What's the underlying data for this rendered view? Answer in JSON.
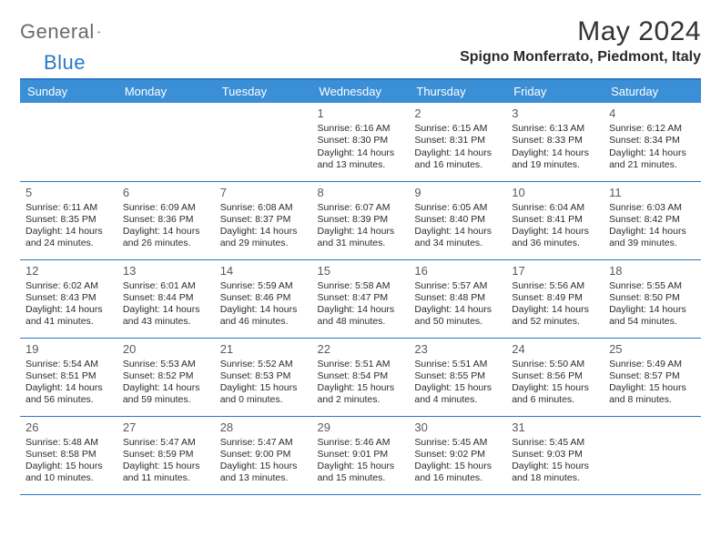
{
  "logo": {
    "word1": "General",
    "word2": "Blue"
  },
  "title": "May 2024",
  "location": "Spigno Monferrato, Piedmont, Italy",
  "title_fontsize": 30,
  "location_fontsize": 16,
  "dow_fontsize": 13,
  "cell_fontsize": 10.5,
  "colors": {
    "header_bg": "#3b8fd6",
    "header_text": "#ffffff",
    "accent": "#2a78c5",
    "logo_gray": "#6a6a6a",
    "text": "#2b2b2b",
    "daynum": "#5a5a5a",
    "background": "#ffffff"
  },
  "days_of_week": [
    "Sunday",
    "Monday",
    "Tuesday",
    "Wednesday",
    "Thursday",
    "Friday",
    "Saturday"
  ],
  "weeks": [
    [
      null,
      null,
      null,
      {
        "n": "1",
        "sr": "Sunrise: 6:16 AM",
        "ss": "Sunset: 8:30 PM",
        "d1": "Daylight: 14 hours",
        "d2": "and 13 minutes."
      },
      {
        "n": "2",
        "sr": "Sunrise: 6:15 AM",
        "ss": "Sunset: 8:31 PM",
        "d1": "Daylight: 14 hours",
        "d2": "and 16 minutes."
      },
      {
        "n": "3",
        "sr": "Sunrise: 6:13 AM",
        "ss": "Sunset: 8:33 PM",
        "d1": "Daylight: 14 hours",
        "d2": "and 19 minutes."
      },
      {
        "n": "4",
        "sr": "Sunrise: 6:12 AM",
        "ss": "Sunset: 8:34 PM",
        "d1": "Daylight: 14 hours",
        "d2": "and 21 minutes."
      }
    ],
    [
      {
        "n": "5",
        "sr": "Sunrise: 6:11 AM",
        "ss": "Sunset: 8:35 PM",
        "d1": "Daylight: 14 hours",
        "d2": "and 24 minutes."
      },
      {
        "n": "6",
        "sr": "Sunrise: 6:09 AM",
        "ss": "Sunset: 8:36 PM",
        "d1": "Daylight: 14 hours",
        "d2": "and 26 minutes."
      },
      {
        "n": "7",
        "sr": "Sunrise: 6:08 AM",
        "ss": "Sunset: 8:37 PM",
        "d1": "Daylight: 14 hours",
        "d2": "and 29 minutes."
      },
      {
        "n": "8",
        "sr": "Sunrise: 6:07 AM",
        "ss": "Sunset: 8:39 PM",
        "d1": "Daylight: 14 hours",
        "d2": "and 31 minutes."
      },
      {
        "n": "9",
        "sr": "Sunrise: 6:05 AM",
        "ss": "Sunset: 8:40 PM",
        "d1": "Daylight: 14 hours",
        "d2": "and 34 minutes."
      },
      {
        "n": "10",
        "sr": "Sunrise: 6:04 AM",
        "ss": "Sunset: 8:41 PM",
        "d1": "Daylight: 14 hours",
        "d2": "and 36 minutes."
      },
      {
        "n": "11",
        "sr": "Sunrise: 6:03 AM",
        "ss": "Sunset: 8:42 PM",
        "d1": "Daylight: 14 hours",
        "d2": "and 39 minutes."
      }
    ],
    [
      {
        "n": "12",
        "sr": "Sunrise: 6:02 AM",
        "ss": "Sunset: 8:43 PM",
        "d1": "Daylight: 14 hours",
        "d2": "and 41 minutes."
      },
      {
        "n": "13",
        "sr": "Sunrise: 6:01 AM",
        "ss": "Sunset: 8:44 PM",
        "d1": "Daylight: 14 hours",
        "d2": "and 43 minutes."
      },
      {
        "n": "14",
        "sr": "Sunrise: 5:59 AM",
        "ss": "Sunset: 8:46 PM",
        "d1": "Daylight: 14 hours",
        "d2": "and 46 minutes."
      },
      {
        "n": "15",
        "sr": "Sunrise: 5:58 AM",
        "ss": "Sunset: 8:47 PM",
        "d1": "Daylight: 14 hours",
        "d2": "and 48 minutes."
      },
      {
        "n": "16",
        "sr": "Sunrise: 5:57 AM",
        "ss": "Sunset: 8:48 PM",
        "d1": "Daylight: 14 hours",
        "d2": "and 50 minutes."
      },
      {
        "n": "17",
        "sr": "Sunrise: 5:56 AM",
        "ss": "Sunset: 8:49 PM",
        "d1": "Daylight: 14 hours",
        "d2": "and 52 minutes."
      },
      {
        "n": "18",
        "sr": "Sunrise: 5:55 AM",
        "ss": "Sunset: 8:50 PM",
        "d1": "Daylight: 14 hours",
        "d2": "and 54 minutes."
      }
    ],
    [
      {
        "n": "19",
        "sr": "Sunrise: 5:54 AM",
        "ss": "Sunset: 8:51 PM",
        "d1": "Daylight: 14 hours",
        "d2": "and 56 minutes."
      },
      {
        "n": "20",
        "sr": "Sunrise: 5:53 AM",
        "ss": "Sunset: 8:52 PM",
        "d1": "Daylight: 14 hours",
        "d2": "and 59 minutes."
      },
      {
        "n": "21",
        "sr": "Sunrise: 5:52 AM",
        "ss": "Sunset: 8:53 PM",
        "d1": "Daylight: 15 hours",
        "d2": "and 0 minutes."
      },
      {
        "n": "22",
        "sr": "Sunrise: 5:51 AM",
        "ss": "Sunset: 8:54 PM",
        "d1": "Daylight: 15 hours",
        "d2": "and 2 minutes."
      },
      {
        "n": "23",
        "sr": "Sunrise: 5:51 AM",
        "ss": "Sunset: 8:55 PM",
        "d1": "Daylight: 15 hours",
        "d2": "and 4 minutes."
      },
      {
        "n": "24",
        "sr": "Sunrise: 5:50 AM",
        "ss": "Sunset: 8:56 PM",
        "d1": "Daylight: 15 hours",
        "d2": "and 6 minutes."
      },
      {
        "n": "25",
        "sr": "Sunrise: 5:49 AM",
        "ss": "Sunset: 8:57 PM",
        "d1": "Daylight: 15 hours",
        "d2": "and 8 minutes."
      }
    ],
    [
      {
        "n": "26",
        "sr": "Sunrise: 5:48 AM",
        "ss": "Sunset: 8:58 PM",
        "d1": "Daylight: 15 hours",
        "d2": "and 10 minutes."
      },
      {
        "n": "27",
        "sr": "Sunrise: 5:47 AM",
        "ss": "Sunset: 8:59 PM",
        "d1": "Daylight: 15 hours",
        "d2": "and 11 minutes."
      },
      {
        "n": "28",
        "sr": "Sunrise: 5:47 AM",
        "ss": "Sunset: 9:00 PM",
        "d1": "Daylight: 15 hours",
        "d2": "and 13 minutes."
      },
      {
        "n": "29",
        "sr": "Sunrise: 5:46 AM",
        "ss": "Sunset: 9:01 PM",
        "d1": "Daylight: 15 hours",
        "d2": "and 15 minutes."
      },
      {
        "n": "30",
        "sr": "Sunrise: 5:45 AM",
        "ss": "Sunset: 9:02 PM",
        "d1": "Daylight: 15 hours",
        "d2": "and 16 minutes."
      },
      {
        "n": "31",
        "sr": "Sunrise: 5:45 AM",
        "ss": "Sunset: 9:03 PM",
        "d1": "Daylight: 15 hours",
        "d2": "and 18 minutes."
      },
      null
    ]
  ]
}
